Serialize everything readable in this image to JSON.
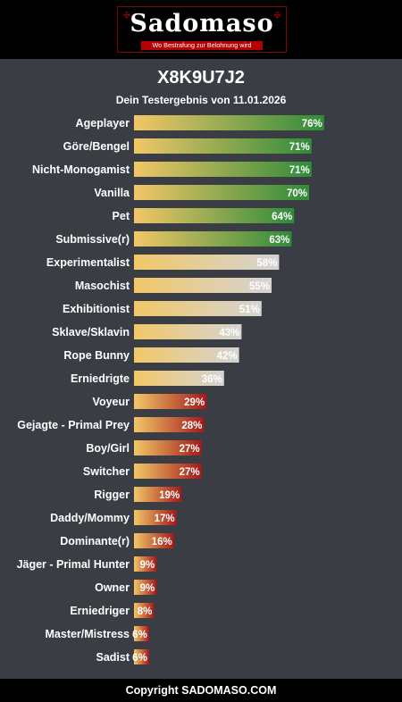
{
  "header": {
    "brand": "Sadomaso",
    "tagline": "Wo Bestrafung zur Belohnung wird"
  },
  "title": "X8K9U7J2",
  "subtitle": "Dein Testergebnis von 11.01.2026",
  "footer": "Copyright SADOMASO.COM",
  "colors": {
    "background": "#3a3d44",
    "bar_start": "#f2c767",
    "high": "#2f8b3a",
    "mid": "#d4d4d4",
    "low": "#a3191a"
  },
  "chart_data": {
    "type": "bar",
    "orientation": "horizontal",
    "categories": [
      "Ageplayer",
      "Göre/Bengel",
      "Nicht-Monogamist",
      "Vanilla",
      "Pet",
      "Submissive(r)",
      "Experimentalist",
      "Masochist",
      "Exhibitionist",
      "Sklave/Sklavin",
      "Rope Bunny",
      "Erniedrigte",
      "Voyeur",
      "Gejagte - Primal Prey",
      "Boy/Girl",
      "Switcher",
      "Rigger",
      "Daddy/Mommy",
      "Dominante(r)",
      "Jäger - Primal Hunter",
      "Owner",
      "Erniedriger",
      "Master/Mistress",
      "Sadist"
    ],
    "values": [
      76,
      71,
      71,
      70,
      64,
      63,
      58,
      55,
      51,
      43,
      42,
      36,
      29,
      28,
      27,
      27,
      19,
      17,
      16,
      9,
      9,
      8,
      6,
      6
    ],
    "value_labels": [
      "76%",
      "71%",
      "71%",
      "70%",
      "64%",
      "63%",
      "58%",
      "55%",
      "51%",
      "43%",
      "42%",
      "36%",
      "29%",
      "28%",
      "27%",
      "27%",
      "19%",
      "17%",
      "16%",
      "9%",
      "9%",
      "8%",
      "6%",
      "6%"
    ],
    "tiers": [
      "high",
      "high",
      "high",
      "high",
      "high",
      "high",
      "mid",
      "mid",
      "mid",
      "mid",
      "mid",
      "mid",
      "low",
      "low",
      "low",
      "low",
      "low",
      "low",
      "low",
      "low",
      "low",
      "low",
      "low",
      "low"
    ],
    "xlim": [
      0,
      100
    ],
    "grid": false
  }
}
